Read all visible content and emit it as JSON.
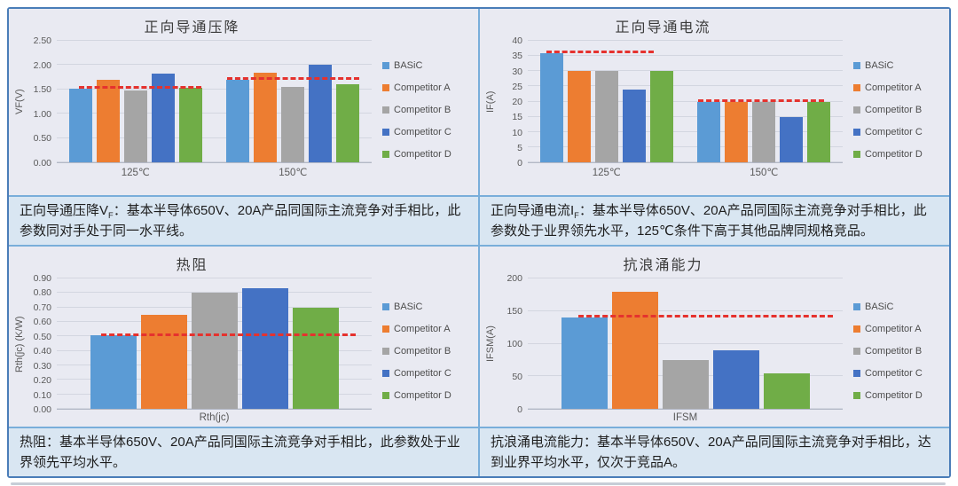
{
  "colors": {
    "panel_border": "#4a7db8",
    "grid_border": "#79aeda",
    "chart_bg": "#e9eaf2",
    "caption_bg": "#d9e6f2",
    "reference_line": "#e5322e"
  },
  "chart_data": [
    {
      "type": "bar",
      "title": "正向导通压降",
      "ylabel": "VF(V)",
      "xlabel": "",
      "categories": [
        "125℃",
        "150℃"
      ],
      "series": [
        {
          "name": "BASiC",
          "color": "#5b9bd5",
          "values": [
            1.52,
            1.7
          ]
        },
        {
          "name": "Competitor A",
          "color": "#ed7d31",
          "values": [
            1.7,
            1.85
          ]
        },
        {
          "name": "Competitor B",
          "color": "#a5a5a5",
          "values": [
            1.48,
            1.56
          ]
        },
        {
          "name": "Competitor C",
          "color": "#4472c4",
          "values": [
            1.83,
            2.0
          ]
        },
        {
          "name": "Competitor D",
          "color": "#70ad47",
          "values": [
            1.53,
            1.61
          ]
        }
      ],
      "ylim": [
        0,
        2.5
      ],
      "yticks": [
        "0.00",
        "0.50",
        "1.00",
        "1.50",
        "2.00",
        "2.50"
      ],
      "grid": true,
      "legend_position": "right",
      "reference_lines": [
        {
          "value": 1.52,
          "span": [
            0.07,
            0.46
          ]
        },
        {
          "value": 1.7,
          "span": [
            0.54,
            0.96
          ]
        }
      ],
      "caption": {
        "pre": "正向导通压降V",
        "sub": "F",
        "post": "：基本半导体650V、20A产品同国际主流竞争对手相比，此参数同对手处于同一水平线。"
      }
    },
    {
      "type": "bar",
      "title": "正向导通电流",
      "ylabel": "IF(A)",
      "xlabel": "",
      "categories": [
        "125℃",
        "150℃"
      ],
      "series": [
        {
          "name": "BASiC",
          "color": "#5b9bd5",
          "values": [
            36,
            20
          ]
        },
        {
          "name": "Competitor A",
          "color": "#ed7d31",
          "values": [
            30,
            20
          ]
        },
        {
          "name": "Competitor B",
          "color": "#a5a5a5",
          "values": [
            30,
            20
          ]
        },
        {
          "name": "Competitor C",
          "color": "#4472c4",
          "values": [
            24,
            15
          ]
        },
        {
          "name": "Competitor D",
          "color": "#70ad47",
          "values": [
            30,
            20
          ]
        }
      ],
      "ylim": [
        0,
        40
      ],
      "yticks": [
        "0",
        "5",
        "10",
        "15",
        "20",
        "25",
        "30",
        "35",
        "40"
      ],
      "grid": true,
      "legend_position": "right",
      "reference_lines": [
        {
          "value": 36,
          "span": [
            0.06,
            0.4
          ]
        },
        {
          "value": 20,
          "span": [
            0.54,
            0.94
          ]
        }
      ],
      "caption": {
        "pre": "正向导通电流I",
        "sub": "F",
        "post": "：基本半导体650V、20A产品同国际主流竞争对手相比，此参数处于业界领先水平，125℃条件下高于其他品牌同规格竞品。"
      }
    },
    {
      "type": "bar",
      "title": "热阻",
      "ylabel": "Rth(jc) (K/W)",
      "xlabel": "",
      "categories": [
        "Rth(jc)"
      ],
      "series": [
        {
          "name": "BASiC",
          "color": "#5b9bd5",
          "values": [
            0.51
          ]
        },
        {
          "name": "Competitor A",
          "color": "#ed7d31",
          "values": [
            0.65
          ]
        },
        {
          "name": "Competitor B",
          "color": "#a5a5a5",
          "values": [
            0.8
          ]
        },
        {
          "name": "Competitor C",
          "color": "#4472c4",
          "values": [
            0.83
          ]
        },
        {
          "name": "Competitor D",
          "color": "#70ad47",
          "values": [
            0.7
          ]
        }
      ],
      "ylim": [
        0,
        0.9
      ],
      "yticks": [
        "0.00",
        "0.10",
        "0.20",
        "0.30",
        "0.40",
        "0.50",
        "0.60",
        "0.70",
        "0.80",
        "0.90"
      ],
      "grid": true,
      "legend_position": "right",
      "reference_lines": [
        {
          "value": 0.5,
          "span": [
            0.14,
            0.95
          ]
        }
      ],
      "caption": {
        "pre": "热阻",
        "sub": "",
        "post": "：基本半导体650V、20A产品同国际主流竞争对手相比，此参数处于业界领先平均水平。"
      }
    },
    {
      "type": "bar",
      "title": "抗浪涌能力",
      "ylabel": "IFSM(A)",
      "xlabel": "",
      "categories": [
        "IFSM"
      ],
      "series": [
        {
          "name": "BASiC",
          "color": "#5b9bd5",
          "values": [
            140
          ]
        },
        {
          "name": "Competitor A",
          "color": "#ed7d31",
          "values": [
            180
          ]
        },
        {
          "name": "Competitor B",
          "color": "#a5a5a5",
          "values": [
            75
          ]
        },
        {
          "name": "Competitor C",
          "color": "#4472c4",
          "values": [
            90
          ]
        },
        {
          "name": "Competitor D",
          "color": "#70ad47",
          "values": [
            55
          ]
        }
      ],
      "ylim": [
        0,
        200
      ],
      "yticks": [
        "0",
        "50",
        "100",
        "150",
        "200"
      ],
      "grid": true,
      "legend_position": "right",
      "reference_lines": [
        {
          "value": 140,
          "span": [
            0.16,
            0.97
          ]
        }
      ],
      "caption": {
        "pre": "抗浪涌电流能力",
        "sub": "",
        "post": "：基本半导体650V、20A产品同国际主流竞争对手相比，达到业界平均水平，仅次于竞品A。"
      }
    }
  ]
}
